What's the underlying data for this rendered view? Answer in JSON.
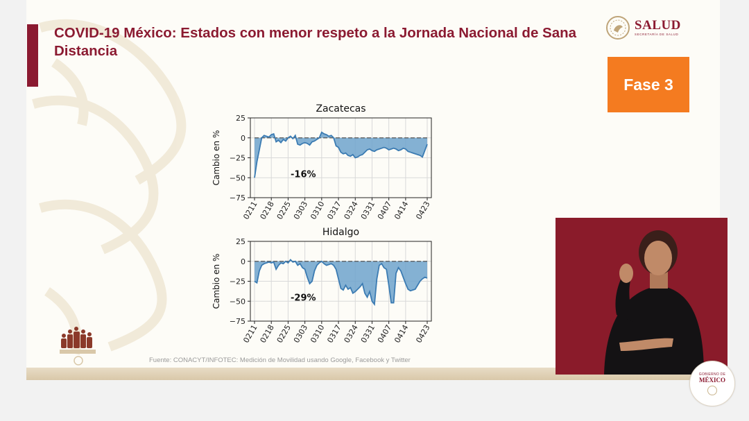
{
  "slide": {
    "title": "COVID-19 México: Estados con menor respeto a la Jornada Nacional de Sana Distancia",
    "logo_name": "SALUD",
    "logo_subtitle": "SECRETARÍA DE SALUD",
    "phase_badge": "Fase 3",
    "source": "Fuente: CONACYT/INFOTEC: Medición de Movilidad usando Google, Facebook y Twitter",
    "footer_seal_top": "GOBIERNO DE",
    "footer_seal_name": "MÉXICO",
    "colors": {
      "title": "#8b1a31",
      "badge": "#f47b20",
      "line": "#3b7bb2",
      "fill": "#6fa3cc",
      "interpreter_bg": "#8a1b2a"
    }
  },
  "chart_data": [
    {
      "type": "area",
      "title": "Zacatecas",
      "xlabel": "",
      "ylabel": "Cambio en %",
      "ylim": [
        -75,
        25
      ],
      "yticks": [
        25,
        0,
        -25,
        -50,
        -75
      ],
      "xticks": [
        "0211",
        "0218",
        "0225",
        "0303",
        "0310",
        "0317",
        "0324",
        "0331",
        "0407",
        "0414",
        "0423"
      ],
      "annotation": "-16%",
      "grid": true,
      "reference_line": 0,
      "x": [
        "0211",
        "0212",
        "0213",
        "0214",
        "0215",
        "0216",
        "0217",
        "0218",
        "0219",
        "0220",
        "0221",
        "0222",
        "0223",
        "0224",
        "0225",
        "0226",
        "0227",
        "0228",
        "0229",
        "0301",
        "0302",
        "0303",
        "0304",
        "0305",
        "0306",
        "0307",
        "0308",
        "0309",
        "0310",
        "0311",
        "0312",
        "0313",
        "0314",
        "0315",
        "0316",
        "0317",
        "0318",
        "0319",
        "0320",
        "0321",
        "0322",
        "0323",
        "0324",
        "0325",
        "0326",
        "0327",
        "0328",
        "0329",
        "0330",
        "0331",
        "0401",
        "0402",
        "0403",
        "0404",
        "0405",
        "0406",
        "0407",
        "0408",
        "0409",
        "0410",
        "0411",
        "0412",
        "0413",
        "0414",
        "0415",
        "0416",
        "0417",
        "0418",
        "0419",
        "0420",
        "0421",
        "0422",
        "0423"
      ],
      "values": [
        -50,
        -30,
        -15,
        0,
        3,
        2,
        1,
        4,
        5,
        -5,
        -3,
        -6,
        -2,
        -4,
        0,
        2,
        -1,
        3,
        -8,
        -9,
        -7,
        -6,
        -7,
        -9,
        -5,
        -4,
        -2,
        0,
        7,
        5,
        4,
        2,
        3,
        0,
        -10,
        -12,
        -18,
        -20,
        -19,
        -22,
        -23,
        -21,
        -25,
        -24,
        -22,
        -21,
        -18,
        -15,
        -14,
        -16,
        -17,
        -15,
        -14,
        -13,
        -12,
        -13,
        -15,
        -14,
        -13,
        -14,
        -16,
        -15,
        -13,
        -14,
        -17,
        -18,
        -19,
        -20,
        -21,
        -22,
        -24,
        -16,
        -8
      ],
      "series": [
        {
          "name": "",
          "color": "#3b7bb2"
        }
      ]
    },
    {
      "type": "area",
      "title": "Hidalgo",
      "xlabel": "",
      "ylabel": "Cambio en %",
      "ylim": [
        -75,
        25
      ],
      "yticks": [
        25,
        0,
        -25,
        -50,
        -75
      ],
      "xticks": [
        "0211",
        "0218",
        "0225",
        "0303",
        "0310",
        "0317",
        "0324",
        "0331",
        "0407",
        "0414",
        "0423"
      ],
      "annotation": "-29%",
      "grid": true,
      "reference_line": 0,
      "x": [
        "0211",
        "0212",
        "0213",
        "0214",
        "0215",
        "0216",
        "0217",
        "0218",
        "0219",
        "0220",
        "0221",
        "0222",
        "0223",
        "0224",
        "0225",
        "0226",
        "0227",
        "0228",
        "0229",
        "0301",
        "0302",
        "0303",
        "0304",
        "0305",
        "0306",
        "0307",
        "0308",
        "0309",
        "0310",
        "0311",
        "0312",
        "0313",
        "0314",
        "0315",
        "0316",
        "0317",
        "0318",
        "0319",
        "0320",
        "0321",
        "0322",
        "0323",
        "0324",
        "0325",
        "0326",
        "0327",
        "0328",
        "0329",
        "0330",
        "0331",
        "0401",
        "0402",
        "0403",
        "0404",
        "0405",
        "0406",
        "0407",
        "0408",
        "0409",
        "0410",
        "0411",
        "0412",
        "0413",
        "0414",
        "0415",
        "0416",
        "0417",
        "0418",
        "0419",
        "0420",
        "0421",
        "0422",
        "0423"
      ],
      "values": [
        -25,
        -27,
        -12,
        -5,
        -3,
        -2,
        -1,
        -2,
        -1,
        -10,
        -5,
        -2,
        -3,
        0,
        -2,
        2,
        -1,
        0,
        -5,
        -3,
        -8,
        -10,
        -20,
        -28,
        -25,
        -12,
        -5,
        -2,
        0,
        -3,
        -5,
        -4,
        -3,
        -5,
        -10,
        -22,
        -34,
        -36,
        -30,
        -35,
        -33,
        -40,
        -38,
        -35,
        -32,
        -28,
        -40,
        -45,
        -38,
        -50,
        -54,
        -22,
        -5,
        -3,
        -8,
        -10,
        -30,
        -52,
        -52,
        -15,
        -8,
        -12,
        -20,
        -28,
        -35,
        -37,
        -36,
        -35,
        -30,
        -25,
        -22,
        -20,
        -21
      ],
      "series": [
        {
          "name": "",
          "color": "#3b7bb2"
        }
      ]
    }
  ]
}
